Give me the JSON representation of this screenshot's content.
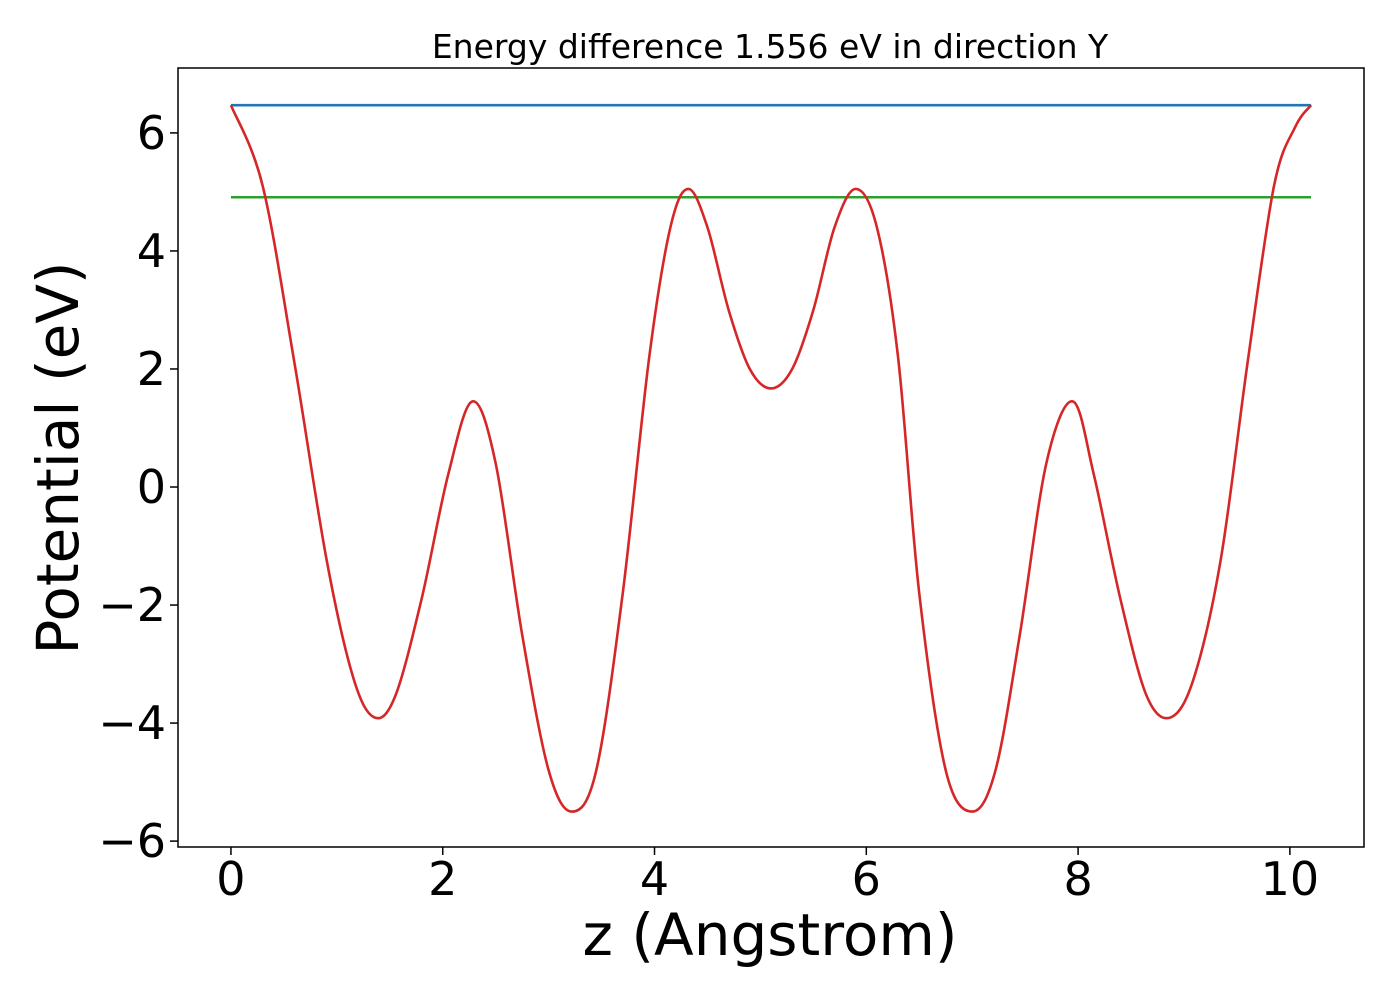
{
  "chart_data": {
    "type": "line",
    "title": "Energy difference 1.556 eV in direction Y",
    "xlabel": "z (Angstrom)",
    "ylabel": "Potential (eV)",
    "xlim": [
      -0.5,
      10.7
    ],
    "ylim": [
      -6.1,
      7.1
    ],
    "xticks": [
      0,
      2,
      4,
      6,
      8,
      10
    ],
    "xtick_labels": [
      "0",
      "2",
      "4",
      "6",
      "8",
      "10"
    ],
    "yticks": [
      -6,
      -4,
      -2,
      0,
      2,
      4,
      6
    ],
    "ytick_labels": [
      "−6",
      "−4",
      "−2",
      "0",
      "2",
      "4",
      "6"
    ],
    "grid": false,
    "series": [
      {
        "color": "#1f77b4",
        "x": [
          0,
          10.2
        ],
        "y": [
          6.47,
          6.47
        ]
      },
      {
        "color": "#2ca02c",
        "x": [
          0,
          10.2
        ],
        "y": [
          4.91,
          4.91
        ]
      },
      {
        "color": "#d62728",
        "x": [
          0,
          0.3,
          0.6,
          0.9,
          1.15,
          1.35,
          1.55,
          1.8,
          2.05,
          2.28,
          2.5,
          2.75,
          3.0,
          3.22,
          3.45,
          3.7,
          3.95,
          4.15,
          4.32,
          4.5,
          4.7,
          4.9,
          5.1,
          5.3,
          5.5,
          5.7,
          5.9,
          6.1,
          6.3,
          6.5,
          6.75,
          7.0,
          7.22,
          7.45,
          7.7,
          7.95,
          8.15,
          8.4,
          8.65,
          8.88,
          9.1,
          9.35,
          9.6,
          9.85,
          10.05,
          10.2
        ],
        "y": [
          6.47,
          5.1,
          2.1,
          -1.2,
          -3.2,
          -3.9,
          -3.55,
          -1.9,
          0.2,
          1.45,
          0.4,
          -2.5,
          -4.8,
          -5.5,
          -4.8,
          -1.8,
          2.2,
          4.4,
          5.05,
          4.4,
          3.0,
          2.0,
          1.67,
          2.0,
          3.0,
          4.4,
          5.05,
          4.4,
          2.2,
          -1.8,
          -4.8,
          -5.5,
          -4.8,
          -2.5,
          0.4,
          1.45,
          0.2,
          -1.9,
          -3.55,
          -3.9,
          -3.2,
          -1.2,
          2.1,
          5.1,
          6.1,
          6.47
        ]
      }
    ]
  }
}
